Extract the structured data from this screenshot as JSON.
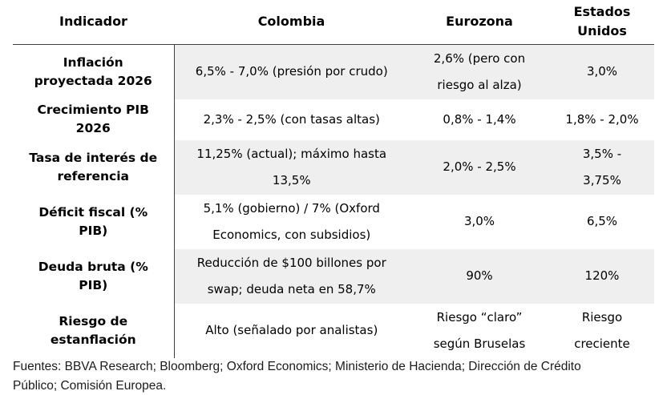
{
  "table": {
    "headers": [
      "Indicador",
      "Colombia",
      "Eurozona",
      "Estados\nUnidos"
    ],
    "rows": [
      {
        "indicator": "Inflación\nproyectada 2026",
        "colombia": "6,5% - 7,0% (presión por crudo)",
        "eurozona": "2,6% (pero con\nriesgo al alza)",
        "estados_unidos": "3,0%"
      },
      {
        "indicator": "Crecimiento PIB\n2026",
        "colombia": "2,3% - 2,5% (con tasas altas)",
        "eurozona": "0,8% - 1,4%",
        "estados_unidos": "1,8% - 2,0%"
      },
      {
        "indicator": "Tasa de interés de\nreferencia",
        "colombia": "11,25% (actual); máximo hasta\n13,5%",
        "eurozona": "2,0% - 2,5%",
        "estados_unidos": "3,5% -\n3,75%"
      },
      {
        "indicator": "Déficit fiscal (%\nPIB)",
        "colombia": "5,1% (gobierno) / 7% (Oxford\nEconomics, con subsidios)",
        "eurozona": "3,0%",
        "estados_unidos": "6,5%"
      },
      {
        "indicator": "Deuda bruta (%\nPIB)",
        "colombia": "Reducción de $100 billones por\nswap; deuda neta en 58,7%",
        "eurozona": "90%",
        "estados_unidos": "120%"
      },
      {
        "indicator": "Riesgo de\nestanflación",
        "colombia": "Alto (señalado por analistas)",
        "eurozona": "Riesgo “claro”\nsegún Bruselas",
        "estados_unidos": "Riesgo\ncreciente"
      }
    ]
  },
  "footer": {
    "sources": "Fuentes: BBVA Research; Bloomberg; Oxford Economics; Ministerio de Hacienda; Dirección de Crédito\nPúblico; Comisión Europea."
  },
  "colors": {
    "row_shade": "#efefef",
    "rule": "#3f3f3f",
    "text": "#000000",
    "footer_text": "#1b1b1b"
  }
}
